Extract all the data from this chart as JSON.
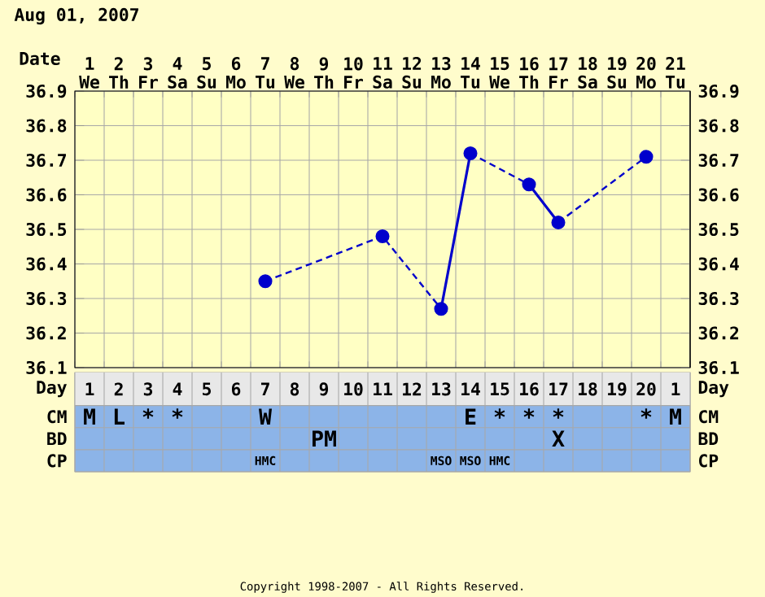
{
  "chart_data": [
    {
      "type": "line",
      "title": "Aug 01, 2007",
      "xlabel": "Date",
      "categories": [
        "1 We",
        "2 Th",
        "3 Fr",
        "4 Sa",
        "5 Su",
        "6 Mo",
        "7 Tu",
        "8 We",
        "9 Th",
        "10 Fr",
        "11 Sa",
        "12 Su",
        "13 Mo",
        "14 Tu",
        "15 We",
        "16 Th",
        "17 Fr",
        "18 Sa",
        "19 Su",
        "20 Mo",
        "21 Tu"
      ],
      "series": [
        {
          "color": "#0000cc",
          "line_style": "dashed",
          "values": [
            null,
            null,
            null,
            null,
            null,
            null,
            36.35,
            null,
            null,
            null,
            36.48,
            null,
            36.27,
            36.72,
            null,
            36.63,
            36.52,
            null,
            null,
            36.71,
            null
          ]
        }
      ],
      "marker": "circle",
      "grid": true,
      "ylim": [
        36.1,
        36.9
      ],
      "yticks": [
        36.1,
        36.2,
        36.3,
        36.4,
        36.5,
        36.6,
        36.7,
        36.8,
        36.9
      ],
      "y2lim": [
        36.1,
        36.9
      ],
      "y2ticks": [
        36.1,
        36.2,
        36.3,
        36.4,
        36.5,
        36.6,
        36.7,
        36.8,
        36.9
      ],
      "annotations": [
        "Copyright 1998-2007 - All Rights Reserved."
      ]
    },
    {
      "type": "heatmap",
      "xlabel": "Day",
      "categories": [
        "1",
        "2",
        "3",
        "4",
        "5",
        "6",
        "7",
        "8",
        "9",
        "10",
        "11",
        "12",
        "13",
        "14",
        "15",
        "16",
        "17",
        "18",
        "19",
        "20",
        "1"
      ],
      "y_categories": [
        "CM",
        "BD",
        "CP"
      ],
      "y2_categories": [
        "CM",
        "BD",
        "CP"
      ],
      "cells": [
        [
          null,
          null,
          null,
          null,
          null,
          null,
          null,
          null,
          null,
          null,
          null,
          null,
          null,
          null,
          null,
          null,
          null,
          null,
          null,
          null,
          null
        ],
        [
          null,
          null,
          null,
          null,
          null,
          null,
          null,
          null,
          null,
          null,
          null,
          null,
          null,
          null,
          null,
          null,
          null,
          null,
          null,
          null,
          null
        ],
        [
          null,
          null,
          null,
          null,
          null,
          null,
          null,
          null,
          null,
          null,
          null,
          null,
          null,
          null,
          null,
          null,
          null,
          null,
          null,
          null,
          null
        ]
      ],
      "cell_labels": [
        [
          "M",
          "L",
          "*",
          "*",
          null,
          null,
          "W",
          null,
          null,
          null,
          null,
          null,
          null,
          "E",
          "*",
          "*",
          "*",
          null,
          null,
          "*",
          "M"
        ],
        [
          null,
          null,
          null,
          null,
          null,
          null,
          null,
          null,
          "PM",
          null,
          null,
          null,
          null,
          null,
          null,
          null,
          "X",
          null,
          null,
          null,
          null
        ],
        [
          null,
          null,
          null,
          null,
          null,
          null,
          "HMC",
          null,
          null,
          null,
          null,
          null,
          "MSO",
          "MSO",
          "HMC",
          null,
          null,
          null,
          null,
          null,
          null
        ]
      ]
    }
  ]
}
